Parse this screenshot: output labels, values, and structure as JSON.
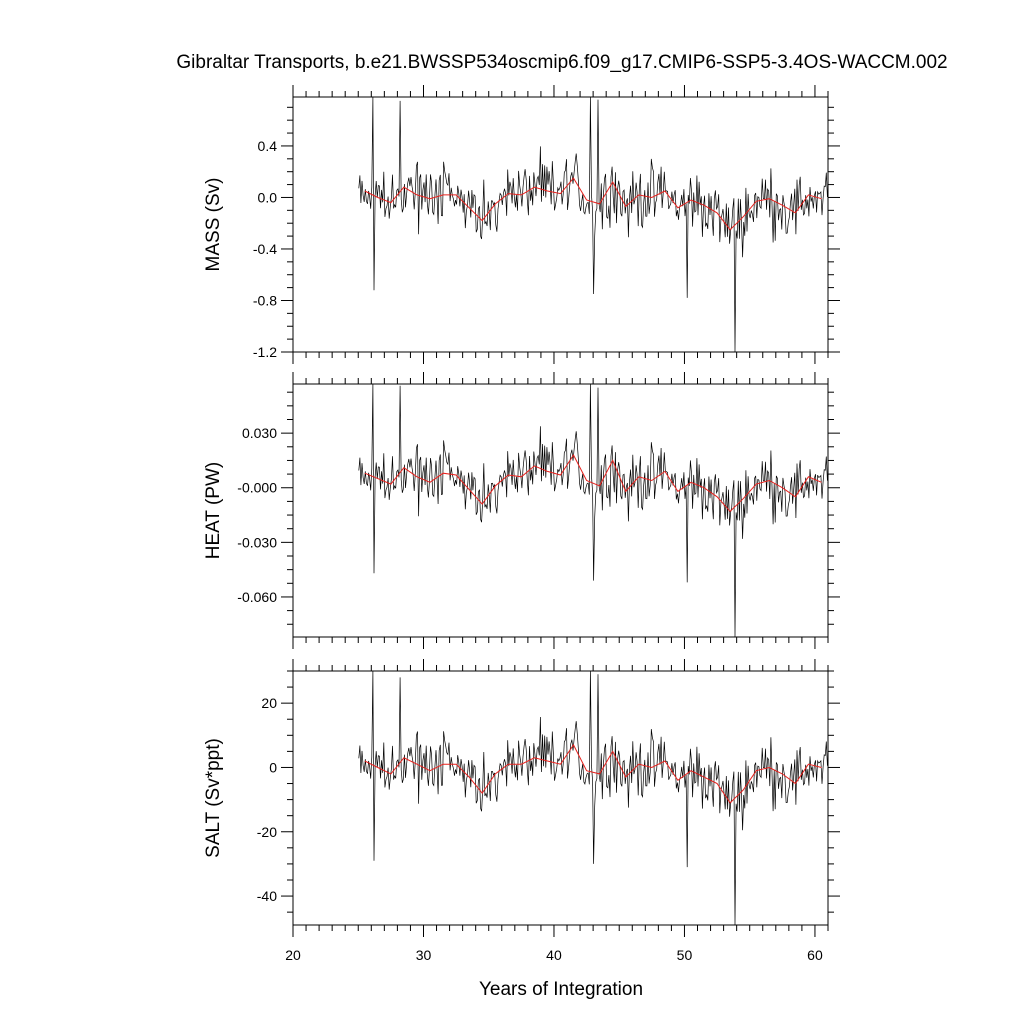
{
  "chart_data": {
    "type": "line",
    "title": "Gibraltar Transports, b.e21.BWSSP534oscmip6.f09_g17.CMIP6-SSP5-3.4OS-WACCM.002",
    "xlabel": "Years of Integration",
    "xlim": [
      20,
      61
    ],
    "xticks": [
      20,
      30,
      40,
      50,
      60
    ],
    "xtick_labels": [
      "20",
      "30",
      "40",
      "50",
      "60"
    ],
    "colors": {
      "monthly": "#000000",
      "annual": "#e8201c"
    },
    "panels": [
      {
        "name": "mass",
        "ylabel": "MASS (Sv)",
        "ylim": [
          -1.2,
          0.78
        ],
        "yticks": [
          -1.2,
          -0.8,
          -0.4,
          0.0,
          0.4
        ],
        "ytick_labels": [
          "-1.2",
          "-0.8",
          "-0.4",
          "0.0",
          "0.4"
        ],
        "spikes": [
          [
            26.1,
            0.78
          ],
          [
            28.2,
            0.75
          ],
          [
            42.8,
            0.78
          ],
          [
            43.4,
            0.76
          ],
          [
            53.9,
            -1.2
          ],
          [
            43.0,
            -0.75
          ],
          [
            26.2,
            -0.72
          ],
          [
            50.2,
            -0.78
          ]
        ],
        "annual": {
          "x": [
            25.5,
            26.5,
            27.5,
            28.5,
            29.5,
            30.5,
            31.5,
            32.5,
            33.5,
            34.5,
            35.5,
            36.5,
            37.5,
            38.5,
            39.5,
            40.5,
            41.5,
            42.5,
            43.5,
            44.5,
            45.5,
            46.5,
            47.5,
            48.5,
            49.5,
            50.5,
            51.5,
            52.5,
            53.5,
            54.5,
            55.5,
            56.5,
            57.5,
            58.5,
            59.5,
            60.5
          ],
          "y": [
            0.05,
            0.0,
            -0.04,
            0.08,
            0.02,
            -0.01,
            0.02,
            0.02,
            -0.08,
            -0.18,
            -0.05,
            0.03,
            0.02,
            0.08,
            0.05,
            0.03,
            0.15,
            -0.02,
            -0.05,
            0.12,
            -0.07,
            0.02,
            0.0,
            0.05,
            -0.08,
            -0.02,
            -0.06,
            -0.12,
            -0.25,
            -0.15,
            -0.03,
            -0.01,
            -0.06,
            -0.12,
            0.02,
            -0.01
          ]
        }
      },
      {
        "name": "heat",
        "ylabel": "HEAT (PW)",
        "ylim": [
          -0.082,
          0.057
        ],
        "yticks": [
          -0.06,
          -0.03,
          0.0,
          0.03
        ],
        "ytick_labels": [
          "-0.060",
          "-0.030",
          "-0.000",
          "0.030"
        ],
        "spikes": [
          [
            26.1,
            0.057
          ],
          [
            28.2,
            0.056
          ],
          [
            42.8,
            0.057
          ],
          [
            43.4,
            0.055
          ],
          [
            53.9,
            -0.082
          ],
          [
            43.0,
            -0.051
          ],
          [
            26.2,
            -0.047
          ],
          [
            50.2,
            -0.052
          ]
        ],
        "annual": {
          "x": [
            25.5,
            26.5,
            27.5,
            28.5,
            29.5,
            30.5,
            31.5,
            32.5,
            33.5,
            34.5,
            35.5,
            36.5,
            37.5,
            38.5,
            39.5,
            40.5,
            41.5,
            42.5,
            43.5,
            44.5,
            45.5,
            46.5,
            47.5,
            48.5,
            49.5,
            50.5,
            51.5,
            52.5,
            53.5,
            54.5,
            55.5,
            56.5,
            57.5,
            58.5,
            59.5,
            60.5
          ],
          "y": [
            0.008,
            0.005,
            0.002,
            0.011,
            0.006,
            0.003,
            0.008,
            0.007,
            -0.001,
            -0.009,
            0.001,
            0.007,
            0.006,
            0.012,
            0.009,
            0.007,
            0.018,
            0.004,
            0.001,
            0.015,
            -0.002,
            0.006,
            0.004,
            0.009,
            -0.002,
            0.003,
            0.0,
            -0.005,
            -0.013,
            -0.006,
            0.002,
            0.004,
            0.0,
            -0.005,
            0.006,
            0.003
          ]
        }
      },
      {
        "name": "salt",
        "ylabel": "SALT (Sv*ppt)",
        "ylim": [
          -49,
          30
        ],
        "yticks": [
          -40,
          -20,
          0,
          20
        ],
        "ytick_labels": [
          "-40",
          "-20",
          "0",
          "20"
        ],
        "spikes": [
          [
            26.1,
            30
          ],
          [
            28.2,
            28
          ],
          [
            42.8,
            30
          ],
          [
            43.4,
            29
          ],
          [
            53.9,
            -49
          ],
          [
            43.0,
            -30
          ],
          [
            26.2,
            -29
          ],
          [
            50.2,
            -31
          ]
        ],
        "annual": {
          "x": [
            25.5,
            26.5,
            27.5,
            28.5,
            29.5,
            30.5,
            31.5,
            32.5,
            33.5,
            34.5,
            35.5,
            36.5,
            37.5,
            38.5,
            39.5,
            40.5,
            41.5,
            42.5,
            43.5,
            44.5,
            45.5,
            46.5,
            47.5,
            48.5,
            49.5,
            50.5,
            51.5,
            52.5,
            53.5,
            54.5,
            55.5,
            56.5,
            57.5,
            58.5,
            59.5,
            60.5
          ],
          "y": [
            2.0,
            0.0,
            -2.0,
            3.0,
            1.0,
            -1.0,
            1.0,
            1.0,
            -3.0,
            -8.0,
            -2.0,
            1.0,
            1.0,
            3.0,
            2.0,
            1.0,
            7.0,
            -1.0,
            -2.0,
            5.0,
            -3.0,
            1.0,
            0.0,
            2.0,
            -4.0,
            -1.0,
            -3.0,
            -5.0,
            -11.0,
            -7.0,
            -1.0,
            0.0,
            -2.0,
            -5.0,
            1.0,
            0.0
          ]
        }
      }
    ]
  }
}
